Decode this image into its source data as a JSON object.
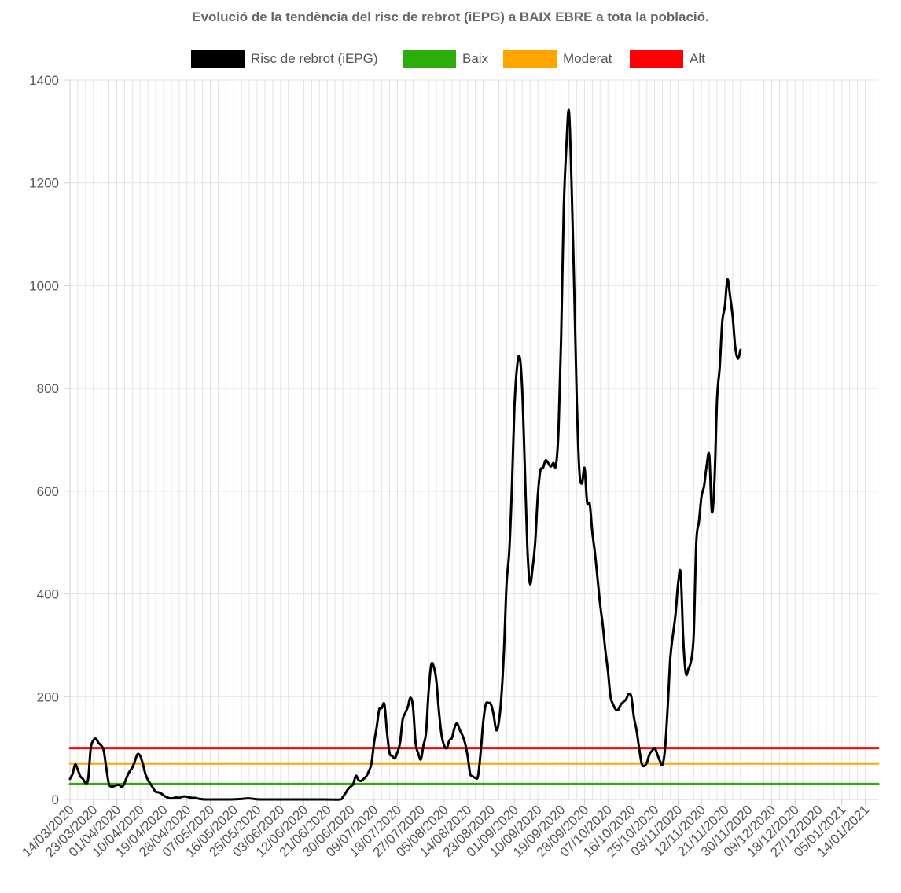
{
  "chart_data": {
    "type": "line",
    "title": "Evolució de la tendència del risc de rebrot (iEPG) a BAIX EBRE a tota la població.",
    "xlabel": "",
    "ylabel": "",
    "ylim": [
      0,
      1400
    ],
    "yticks": [
      0,
      200,
      400,
      600,
      800,
      1000,
      1200,
      1400
    ],
    "x_range": [
      "2020-03-14",
      "2021-01-19"
    ],
    "x_ticks": [
      "14/03/2020",
      "23/03/2020",
      "01/04/2020",
      "10/04/2020",
      "19/04/2020",
      "28/04/2020",
      "07/05/2020",
      "16/05/2020",
      "25/05/2020",
      "03/06/2020",
      "12/06/2020",
      "21/06/2020",
      "30/06/2020",
      "09/07/2020",
      "18/07/2020",
      "27/07/2020",
      "05/08/2020",
      "14/08/2020",
      "23/08/2020",
      "01/09/2020",
      "10/09/2020",
      "19/09/2020",
      "28/09/2020",
      "07/10/2020",
      "16/10/2020",
      "25/10/2020",
      "03/11/2020",
      "12/11/2020",
      "21/11/2020",
      "30/11/2020",
      "09/12/2020",
      "18/12/2020",
      "27/12/2020",
      "05/01/2021",
      "14/01/2021"
    ],
    "grid": true,
    "legend_position": "top",
    "series": [
      {
        "name": "Risc de rebrot (iEPG)",
        "color": "#000000",
        "points": [
          [
            "2020-03-14",
            40
          ],
          [
            "2020-03-15",
            50
          ],
          [
            "2020-03-16",
            68
          ],
          [
            "2020-03-17",
            58
          ],
          [
            "2020-03-18",
            45
          ],
          [
            "2020-03-19",
            40
          ],
          [
            "2020-03-20",
            32
          ],
          [
            "2020-03-21",
            40
          ],
          [
            "2020-03-22",
            100
          ],
          [
            "2020-03-23",
            115
          ],
          [
            "2020-03-24",
            118
          ],
          [
            "2020-03-25",
            110
          ],
          [
            "2020-03-26",
            105
          ],
          [
            "2020-03-27",
            95
          ],
          [
            "2020-03-28",
            60
          ],
          [
            "2020-03-29",
            30
          ],
          [
            "2020-03-30",
            25
          ],
          [
            "2020-03-31",
            26
          ],
          [
            "2020-04-01",
            28
          ],
          [
            "2020-04-02",
            28
          ],
          [
            "2020-04-03",
            24
          ],
          [
            "2020-04-04",
            32
          ],
          [
            "2020-04-05",
            45
          ],
          [
            "2020-04-06",
            55
          ],
          [
            "2020-04-07",
            62
          ],
          [
            "2020-04-08",
            75
          ],
          [
            "2020-04-09",
            88
          ],
          [
            "2020-04-10",
            85
          ],
          [
            "2020-04-11",
            70
          ],
          [
            "2020-04-12",
            50
          ],
          [
            "2020-04-13",
            38
          ],
          [
            "2020-04-14",
            30
          ],
          [
            "2020-04-15",
            22
          ],
          [
            "2020-04-16",
            15
          ],
          [
            "2020-04-17",
            14
          ],
          [
            "2020-04-18",
            12
          ],
          [
            "2020-04-19",
            8
          ],
          [
            "2020-04-20",
            5
          ],
          [
            "2020-04-21",
            3
          ],
          [
            "2020-04-22",
            2
          ],
          [
            "2020-04-23",
            3
          ],
          [
            "2020-04-24",
            4
          ],
          [
            "2020-04-25",
            3
          ],
          [
            "2020-04-26",
            5
          ],
          [
            "2020-04-27",
            6
          ],
          [
            "2020-04-28",
            5
          ],
          [
            "2020-04-29",
            4
          ],
          [
            "2020-04-30",
            3
          ],
          [
            "2020-05-01",
            3
          ],
          [
            "2020-05-02",
            2
          ],
          [
            "2020-05-03",
            1
          ],
          [
            "2020-05-05",
            0
          ],
          [
            "2020-05-10",
            0
          ],
          [
            "2020-05-15",
            0
          ],
          [
            "2020-05-19",
            1
          ],
          [
            "2020-05-21",
            2
          ],
          [
            "2020-05-22",
            2
          ],
          [
            "2020-05-24",
            1
          ],
          [
            "2020-05-26",
            0
          ],
          [
            "2020-06-01",
            0
          ],
          [
            "2020-06-10",
            0
          ],
          [
            "2020-06-20",
            0
          ],
          [
            "2020-06-26",
            0
          ],
          [
            "2020-06-27",
            5
          ],
          [
            "2020-06-28",
            12
          ],
          [
            "2020-06-29",
            20
          ],
          [
            "2020-06-30",
            25
          ],
          [
            "2020-07-01",
            30
          ],
          [
            "2020-07-02",
            46
          ],
          [
            "2020-07-03",
            38
          ],
          [
            "2020-07-04",
            36
          ],
          [
            "2020-07-05",
            40
          ],
          [
            "2020-07-06",
            45
          ],
          [
            "2020-07-07",
            55
          ],
          [
            "2020-07-08",
            70
          ],
          [
            "2020-07-09",
            110
          ],
          [
            "2020-07-10",
            140
          ],
          [
            "2020-07-11",
            175
          ],
          [
            "2020-07-12",
            178
          ],
          [
            "2020-07-13",
            185
          ],
          [
            "2020-07-14",
            130
          ],
          [
            "2020-07-15",
            90
          ],
          [
            "2020-07-16",
            85
          ],
          [
            "2020-07-17",
            80
          ],
          [
            "2020-07-18",
            92
          ],
          [
            "2020-07-19",
            110
          ],
          [
            "2020-07-20",
            155
          ],
          [
            "2020-07-21",
            168
          ],
          [
            "2020-07-22",
            180
          ],
          [
            "2020-07-23",
            198
          ],
          [
            "2020-07-24",
            180
          ],
          [
            "2020-07-25",
            110
          ],
          [
            "2020-07-26",
            90
          ],
          [
            "2020-07-27",
            78
          ],
          [
            "2020-07-28",
            105
          ],
          [
            "2020-07-29",
            130
          ],
          [
            "2020-07-30",
            210
          ],
          [
            "2020-07-31",
            262
          ],
          [
            "2020-08-01",
            258
          ],
          [
            "2020-08-02",
            230
          ],
          [
            "2020-08-03",
            170
          ],
          [
            "2020-08-04",
            125
          ],
          [
            "2020-08-05",
            105
          ],
          [
            "2020-08-06",
            100
          ],
          [
            "2020-08-07",
            115
          ],
          [
            "2020-08-08",
            120
          ],
          [
            "2020-08-09",
            140
          ],
          [
            "2020-08-10",
            148
          ],
          [
            "2020-08-11",
            135
          ],
          [
            "2020-08-12",
            125
          ],
          [
            "2020-08-13",
            110
          ],
          [
            "2020-08-14",
            85
          ],
          [
            "2020-08-15",
            50
          ],
          [
            "2020-08-16",
            45
          ],
          [
            "2020-08-17",
            42
          ],
          [
            "2020-08-18",
            45
          ],
          [
            "2020-08-19",
            90
          ],
          [
            "2020-08-20",
            150
          ],
          [
            "2020-08-21",
            185
          ],
          [
            "2020-08-22",
            188
          ],
          [
            "2020-08-23",
            185
          ],
          [
            "2020-08-24",
            165
          ],
          [
            "2020-08-25",
            135
          ],
          [
            "2020-08-26",
            150
          ],
          [
            "2020-08-27",
            200
          ],
          [
            "2020-08-28",
            290
          ],
          [
            "2020-08-29",
            420
          ],
          [
            "2020-08-30",
            480
          ],
          [
            "2020-08-31",
            600
          ],
          [
            "2020-09-01",
            760
          ],
          [
            "2020-09-02",
            840
          ],
          [
            "2020-09-03",
            862
          ],
          [
            "2020-09-04",
            800
          ],
          [
            "2020-09-05",
            650
          ],
          [
            "2020-09-06",
            490
          ],
          [
            "2020-09-07",
            420
          ],
          [
            "2020-09-08",
            450
          ],
          [
            "2020-09-09",
            500
          ],
          [
            "2020-09-10",
            590
          ],
          [
            "2020-09-11",
            640
          ],
          [
            "2020-09-12",
            645
          ],
          [
            "2020-09-13",
            660
          ],
          [
            "2020-09-14",
            655
          ],
          [
            "2020-09-15",
            648
          ],
          [
            "2020-09-16",
            655
          ],
          [
            "2020-09-17",
            650
          ],
          [
            "2020-09-18",
            720
          ],
          [
            "2020-09-19",
            900
          ],
          [
            "2020-09-20",
            1150
          ],
          [
            "2020-09-21",
            1270
          ],
          [
            "2020-09-22",
            1340
          ],
          [
            "2020-09-23",
            1200
          ],
          [
            "2020-09-24",
            1000
          ],
          [
            "2020-09-25",
            780
          ],
          [
            "2020-09-26",
            640
          ],
          [
            "2020-09-27",
            615
          ],
          [
            "2020-09-28",
            645
          ],
          [
            "2020-09-29",
            578
          ],
          [
            "2020-09-30",
            575
          ],
          [
            "2020-10-01",
            520
          ],
          [
            "2020-10-02",
            480
          ],
          [
            "2020-10-03",
            430
          ],
          [
            "2020-10-04",
            380
          ],
          [
            "2020-10-05",
            340
          ],
          [
            "2020-10-06",
            290
          ],
          [
            "2020-10-07",
            250
          ],
          [
            "2020-10-08",
            200
          ],
          [
            "2020-10-09",
            185
          ],
          [
            "2020-10-10",
            175
          ],
          [
            "2020-10-11",
            175
          ],
          [
            "2020-10-12",
            185
          ],
          [
            "2020-10-13",
            190
          ],
          [
            "2020-10-14",
            195
          ],
          [
            "2020-10-15",
            205
          ],
          [
            "2020-10-16",
            200
          ],
          [
            "2020-10-17",
            160
          ],
          [
            "2020-10-18",
            135
          ],
          [
            "2020-10-19",
            100
          ],
          [
            "2020-10-20",
            70
          ],
          [
            "2020-10-21",
            65
          ],
          [
            "2020-10-22",
            72
          ],
          [
            "2020-10-23",
            88
          ],
          [
            "2020-10-24",
            95
          ],
          [
            "2020-10-25",
            100
          ],
          [
            "2020-10-26",
            88
          ],
          [
            "2020-10-27",
            75
          ],
          [
            "2020-10-28",
            68
          ],
          [
            "2020-10-29",
            100
          ],
          [
            "2020-10-30",
            180
          ],
          [
            "2020-10-31",
            275
          ],
          [
            "2020-11-01",
            320
          ],
          [
            "2020-11-02",
            360
          ],
          [
            "2020-11-03",
            420
          ],
          [
            "2020-11-04",
            440
          ],
          [
            "2020-11-05",
            310
          ],
          [
            "2020-11-06",
            245
          ],
          [
            "2020-11-07",
            255
          ],
          [
            "2020-11-08",
            270
          ],
          [
            "2020-11-09",
            320
          ],
          [
            "2020-11-10",
            500
          ],
          [
            "2020-11-11",
            540
          ],
          [
            "2020-11-12",
            590
          ],
          [
            "2020-11-13",
            610
          ],
          [
            "2020-11-14",
            650
          ],
          [
            "2020-11-15",
            670
          ],
          [
            "2020-11-16",
            560
          ],
          [
            "2020-11-17",
            620
          ],
          [
            "2020-11-18",
            780
          ],
          [
            "2020-11-19",
            840
          ],
          [
            "2020-11-20",
            930
          ],
          [
            "2020-11-21",
            960
          ],
          [
            "2020-11-22",
            1012
          ],
          [
            "2020-11-23",
            980
          ],
          [
            "2020-11-24",
            940
          ],
          [
            "2020-11-25",
            880
          ],
          [
            "2020-11-26",
            858
          ],
          [
            "2020-11-27",
            875
          ]
        ]
      },
      {
        "name": "Baix",
        "color": "#2bad0a",
        "points": [
          [
            "2020-03-14",
            30
          ],
          [
            "2021-01-19",
            30
          ]
        ]
      },
      {
        "name": "Moderat",
        "color": "#ffa500",
        "points": [
          [
            "2020-03-14",
            70
          ],
          [
            "2021-01-19",
            70
          ]
        ]
      },
      {
        "name": "Alt",
        "color": "#ff0000",
        "points": [
          [
            "2020-03-14",
            100
          ],
          [
            "2021-01-19",
            100
          ]
        ]
      }
    ]
  }
}
